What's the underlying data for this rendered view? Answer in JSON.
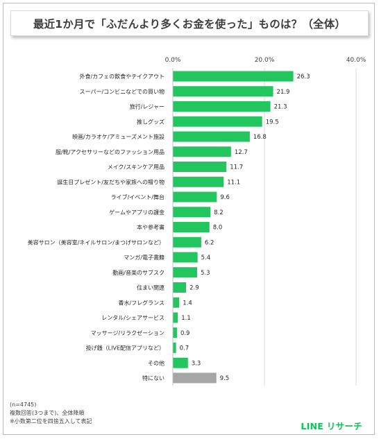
{
  "title": "最近1か月で「ふだんより多くお金を使った」ものは？（全体）",
  "footnotes": [
    "(n=4745)",
    "複数回答(3つまで)、全体降順",
    "※小数第二位を四捨五入して表記"
  ],
  "brand": {
    "text": "LINE リサーチ",
    "color": "#06c755"
  },
  "colors": {
    "bar": "#22c55e",
    "bar_none": "#a6a6a6",
    "grid": "#d9d9d9",
    "text": "#262626"
  },
  "chart_data": {
    "type": "bar",
    "orientation": "horizontal",
    "xlim": [
      0,
      40
    ],
    "ticks": [
      "0.0%",
      "20.0%",
      "40.0%"
    ],
    "tick_values": [
      0,
      20,
      40
    ],
    "grid": true,
    "categories": [
      "外食/カフェの飲食やテイクアウト",
      "スーパー/コンビニなどでの買い物",
      "旅行/レジャー",
      "推しグッズ",
      "映画/カラオケ/アミューズメント施設",
      "服/靴/アクセサリーなどのファッション用品",
      "メイク/スキンケア用品",
      "誕生日プレゼント/友だちや家族への贈り物",
      "ライブ/イベント/舞台",
      "ゲームやアプリの課金",
      "本や参考書",
      "美容サロン（美容室/ネイルサロン/まつげサロンなど）",
      "マンガ/電子書籍",
      "動画/音楽のサブスク",
      "住まい関連",
      "香水/フレグランス",
      "レンタル/シェアサービス",
      "マッサージ/リラクゼーション",
      "投げ銭（LIVE配信アプリなど）",
      "その他",
      "特にない"
    ],
    "values": [
      26.3,
      21.9,
      21.3,
      19.5,
      16.8,
      12.7,
      11.7,
      11.1,
      9.6,
      8.2,
      8.0,
      6.2,
      5.4,
      5.3,
      2.9,
      1.4,
      1.1,
      0.9,
      0.7,
      3.3,
      9.5
    ],
    "value_labels": [
      "26.3",
      "21.9",
      "21.3",
      "19.5",
      "16.8",
      "12.7",
      "11.7",
      "11.1",
      "9.6",
      "8.2",
      "8.0",
      "6.2",
      "5.4",
      "5.3",
      "2.9",
      "1.4",
      "1.1",
      "0.9",
      "0.7",
      "3.3",
      "9.5"
    ],
    "highlight_gray": [
      "特にない"
    ]
  }
}
